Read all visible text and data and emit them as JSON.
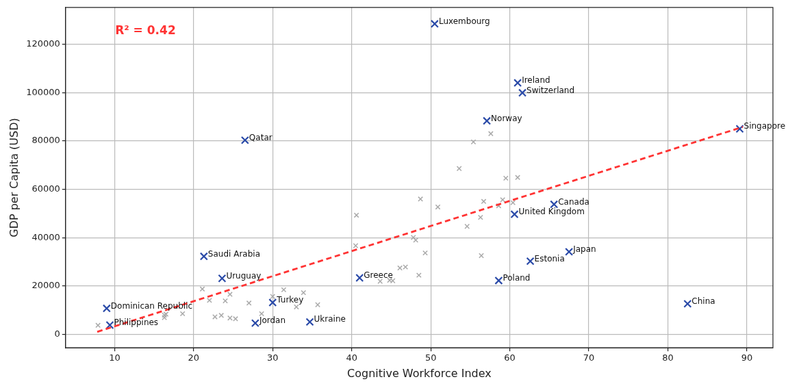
{
  "chart_data": {
    "type": "scatter",
    "xlabel": "Cognitive Workforce Index",
    "ylabel": "GDP per Capita (USD)",
    "xlim": [
      3.8,
      93.3
    ],
    "ylim": [
      -5500,
      135200
    ],
    "xticks": [
      10,
      20,
      30,
      40,
      50,
      60,
      70,
      80,
      90
    ],
    "yticks": [
      0,
      20000,
      40000,
      60000,
      80000,
      100000,
      120000
    ],
    "grid": true,
    "legend": false,
    "marker": "cross",
    "series": [
      {
        "color": "#aaaaaa",
        "x": [
          7.9,
          16.3,
          16.5,
          16.3,
          18.6,
          21.1,
          22.0,
          24.0,
          24.6,
          22.7,
          23.5,
          24.6,
          25.3,
          27.0,
          28.6,
          30.0,
          31.4,
          33.0,
          33.9,
          35.7,
          57.6,
          55.4,
          53.6,
          59.5,
          61.0,
          48.7,
          50.9,
          56.7,
          59.1,
          58.6,
          60.4,
          40.6,
          56.3,
          54.6,
          40.5,
          47.8,
          48.1,
          49.3,
          56.4,
          46.1,
          46.8,
          48.5,
          43.6,
          44.8,
          45.2
        ],
        "values": [
          3800,
          8000,
          8400,
          7000,
          8600,
          18800,
          14100,
          13900,
          16600,
          7300,
          7900,
          6800,
          6500,
          13000,
          8600,
          15700,
          18500,
          11400,
          17300,
          12300,
          83000,
          79600,
          68600,
          64600,
          64900,
          56000,
          52700,
          55000,
          55700,
          53200,
          54500,
          49300,
          48400,
          44700,
          36700,
          40100,
          39000,
          33700,
          32600,
          27500,
          27900,
          24500,
          22000,
          22400,
          22200
        ]
      },
      {
        "color": "#2a4aa8",
        "x": [
          50.5,
          61.0,
          61.6,
          57.1,
          89.1,
          26.5,
          65.6,
          60.6,
          67.5,
          62.6,
          21.3,
          23.6,
          41.0,
          58.6,
          82.5,
          9.0,
          9.4,
          30.0,
          27.8,
          34.7
        ],
        "values": [
          128400,
          104000,
          99900,
          88300,
          85000,
          80300,
          53800,
          49700,
          34200,
          30300,
          32300,
          23200,
          23400,
          22300,
          12700,
          10800,
          3900,
          13200,
          4700,
          5200
        ]
      },
      {
        "type": "line",
        "color": "#ff3333",
        "line_style": "dashed",
        "marker": "none",
        "x": [
          7.8,
          89.5
        ],
        "values": [
          1100,
          85800
        ]
      }
    ],
    "annotations": [
      "R² = 0.42",
      {
        "text": "Luxembourg",
        "x": 50.5,
        "y": 128400
      },
      {
        "text": "Ireland",
        "x": 61.0,
        "y": 104000
      },
      {
        "text": "Switzerland",
        "x": 61.6,
        "y": 99900
      },
      {
        "text": "Norway",
        "x": 57.1,
        "y": 88300
      },
      {
        "text": "Singapore",
        "x": 89.1,
        "y": 85000
      },
      {
        "text": "Qatar",
        "x": 26.5,
        "y": 80300
      },
      {
        "text": "Canada",
        "x": 65.6,
        "y": 53800
      },
      {
        "text": "United Kingdom",
        "x": 60.6,
        "y": 49700
      },
      {
        "text": "Japan",
        "x": 67.5,
        "y": 34200
      },
      {
        "text": "Estonia",
        "x": 62.6,
        "y": 30300
      },
      {
        "text": "Saudi Arabia",
        "x": 21.3,
        "y": 32300
      },
      {
        "text": "Uruguay",
        "x": 23.6,
        "y": 23200
      },
      {
        "text": "Greece",
        "x": 41.0,
        "y": 23400
      },
      {
        "text": "Poland",
        "x": 58.6,
        "y": 22300
      },
      {
        "text": "China",
        "x": 82.5,
        "y": 12700
      },
      {
        "text": "Dominican Republic",
        "x": 9.0,
        "y": 10800
      },
      {
        "text": "Philippines",
        "x": 9.4,
        "y": 3900
      },
      {
        "text": "Turkey",
        "x": 30.0,
        "y": 13200
      },
      {
        "text": "Jordan",
        "x": 27.8,
        "y": 4700
      },
      {
        "text": "Ukraine",
        "x": 34.7,
        "y": 5200
      }
    ]
  }
}
